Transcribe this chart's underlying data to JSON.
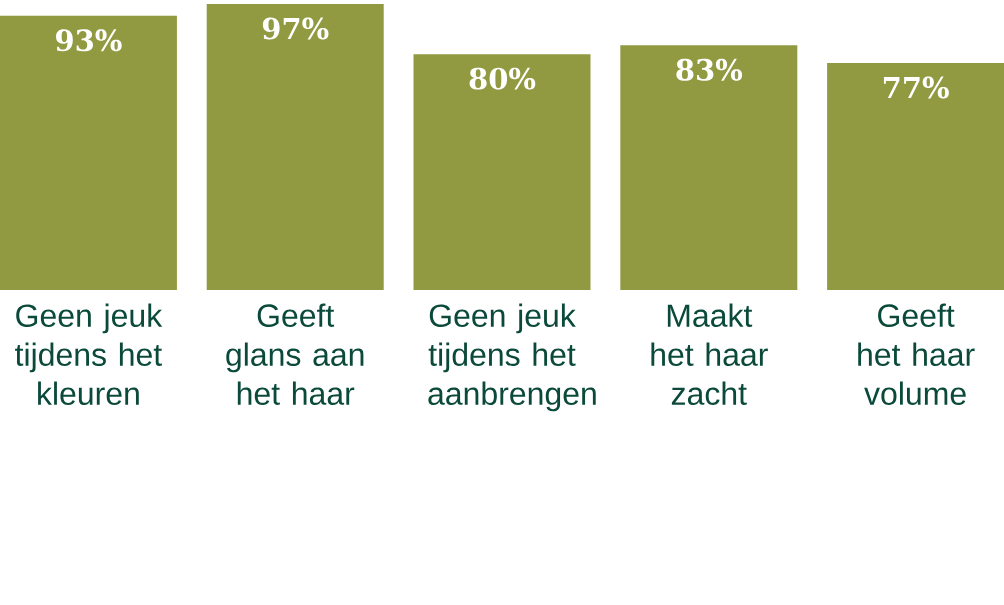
{
  "chart_data": {
    "type": "bar",
    "categories": [
      "Geen jeuk tijdens het kleuren",
      "Geeft glans aan het haar",
      "Geen jeuk tijdens het aanbrengen",
      "Maakt het haar zacht",
      "Geeft het haar volume"
    ],
    "values": [
      93,
      97,
      80,
      83,
      77
    ],
    "value_labels": [
      "93%",
      "97%",
      "80%",
      "83%",
      "77%"
    ],
    "color": "#919a40"
  }
}
